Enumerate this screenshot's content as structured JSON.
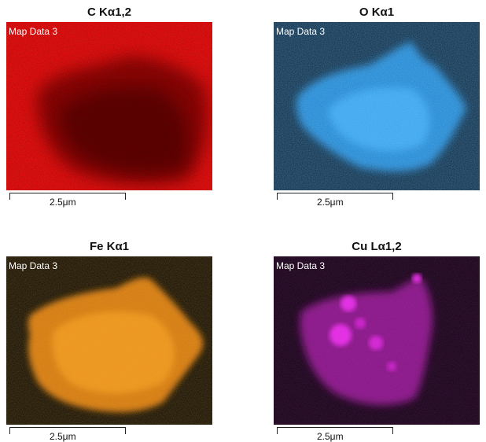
{
  "panels": [
    {
      "title": "C Kα1,2",
      "label": "Map Data 3",
      "scale": "2.5μm",
      "color": "#ff1a1a"
    },
    {
      "title": "O Kα1",
      "label": "Map Data 3",
      "scale": "2.5μm",
      "color": "#2a9be8"
    },
    {
      "title": "Fe Kα1",
      "label": "Map Data 3",
      "scale": "2.5μm",
      "color": "#f08a12"
    },
    {
      "title": "Cu Lα1,2",
      "label": "Map Data 3",
      "scale": "2.5μm",
      "color": "#e01ee0"
    }
  ]
}
